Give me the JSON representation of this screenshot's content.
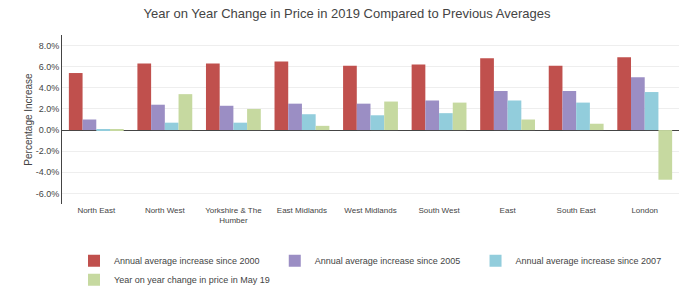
{
  "chart_data": {
    "type": "bar",
    "title": "Year on Year Change in Price in 2019 Compared to Previous Averages",
    "ylabel": "Percentage Increase",
    "categories": [
      "North East",
      "North West",
      "Yorkshire & The\nHumber",
      "East Midlands",
      "West Midlands",
      "South West",
      "East",
      "South East",
      "London"
    ],
    "series": [
      {
        "name": "Annual average increase since 2000",
        "color": "#c0504d",
        "values": [
          0.054,
          0.063,
          0.063,
          0.065,
          0.061,
          0.062,
          0.068,
          0.061,
          0.069
        ]
      },
      {
        "name": "Annual average increase since 2005",
        "color": "#9b8ec4",
        "values": [
          0.01,
          0.024,
          0.023,
          0.025,
          0.025,
          0.028,
          0.037,
          0.037,
          0.05
        ]
      },
      {
        "name": "Annual average increase since 2007",
        "color": "#92cddc",
        "values": [
          0.001,
          0.007,
          0.007,
          0.015,
          0.014,
          0.016,
          0.028,
          0.026,
          0.036
        ]
      },
      {
        "name": "Year on year change in price in May 19",
        "color": "#c6d9a0",
        "values": [
          0.001,
          0.034,
          0.02,
          0.004,
          0.027,
          0.026,
          0.01,
          0.006,
          -0.047
        ]
      }
    ],
    "ylim": [
      -0.07,
      0.09
    ],
    "yticks": [
      {
        "value": -0.06,
        "label": "-6.0%"
      },
      {
        "value": -0.04,
        "label": "-4.0%"
      },
      {
        "value": -0.02,
        "label": "-2.0%"
      },
      {
        "value": 0.0,
        "label": "0.0%"
      },
      {
        "value": 0.02,
        "label": "2.0%"
      },
      {
        "value": 0.04,
        "label": "4.0%"
      },
      {
        "value": 0.06,
        "label": "6.0%"
      },
      {
        "value": 0.08,
        "label": "8.0%"
      }
    ],
    "grid": true,
    "legend": "bottom"
  }
}
